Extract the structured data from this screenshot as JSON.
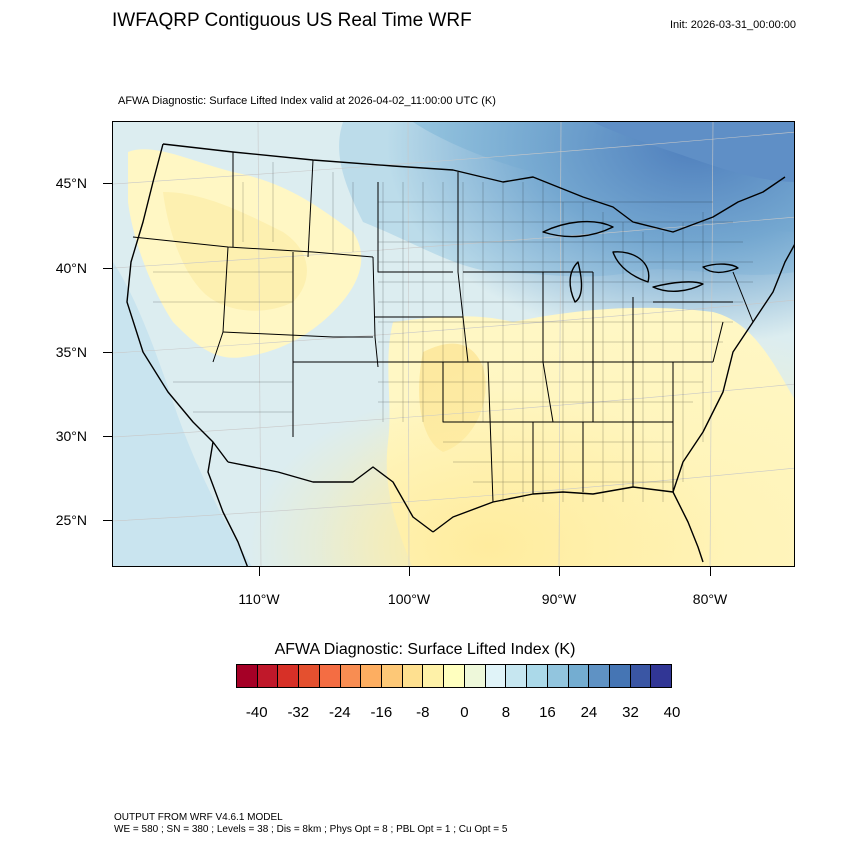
{
  "header": {
    "title": "IWFAQRP Contiguous US Real Time WRF",
    "init": "Init: 2026-03-31_00:00:00"
  },
  "plot": {
    "subtitle": "AFWA Diagnostic: Surface Lifted Index valid at 2026-04-02_11:00:00 UTC   (K)"
  },
  "axes": {
    "lat_labels": [
      "45°N",
      "40°N",
      "35°N",
      "30°N",
      "25°N"
    ],
    "lon_labels": [
      "110°W",
      "100°W",
      "90°W",
      "80°W"
    ]
  },
  "legend": {
    "title": "AFWA Diagnostic: Surface Lifted Index  (K)",
    "tick_labels": [
      "-40",
      "-32",
      "-24",
      "-16",
      "-8",
      "0",
      "8",
      "16",
      "24",
      "32",
      "40"
    ],
    "colors": [
      "#a50026",
      "#c0182a",
      "#d73027",
      "#e4502f",
      "#f46d43",
      "#f88d52",
      "#fdae61",
      "#fdc877",
      "#fee090",
      "#fef1a8",
      "#ffffbf",
      "#eef8da",
      "#e0f3f8",
      "#c6e6f0",
      "#abd9e9",
      "#92c5de",
      "#74add1",
      "#5f92c4",
      "#4575b4",
      "#3a56a4",
      "#313695"
    ]
  },
  "footer": {
    "line1": "OUTPUT FROM WRF V4.6.1 MODEL",
    "line2": "WE = 580 ; SN = 380 ; Levels = 38 ; Dis = 8km ; Phys Opt = 8 ; PBL Opt = 1 ; Cu Opt = 5"
  }
}
